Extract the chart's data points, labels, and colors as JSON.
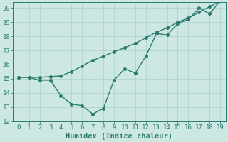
{
  "x": [
    0,
    1,
    2,
    3,
    4,
    5,
    6,
    7,
    8,
    9,
    10,
    11,
    12,
    13,
    14,
    15,
    16,
    17,
    18,
    19
  ],
  "line1_y": [
    15.1,
    15.1,
    15.1,
    15.15,
    15.2,
    15.5,
    15.9,
    16.3,
    16.6,
    16.9,
    17.2,
    17.5,
    17.9,
    18.3,
    18.6,
    19.0,
    19.3,
    19.7,
    20.1,
    20.5
  ],
  "line2_y": [
    15.1,
    15.1,
    14.9,
    14.9,
    13.8,
    13.2,
    13.1,
    12.5,
    12.9,
    14.9,
    15.7,
    15.4,
    16.6,
    18.2,
    18.1,
    18.9,
    19.2,
    20.0,
    19.6,
    20.5
  ],
  "line_color": "#2a7a6e",
  "bg_color": "#cde8e2",
  "grid_color": "#b0d4ce",
  "xlabel": "Humidex (Indice chaleur)",
  "ylim": [
    12,
    20
  ],
  "xlim": [
    -0.5,
    19.5
  ],
  "yticks": [
    12,
    13,
    14,
    15,
    16,
    17,
    18,
    19,
    20
  ],
  "xticks": [
    0,
    1,
    2,
    3,
    4,
    5,
    6,
    7,
    8,
    9,
    10,
    11,
    12,
    13,
    14,
    15,
    16,
    17,
    18,
    19
  ],
  "marker_size": 2.5,
  "line_width": 1.0,
  "font_size": 6.5,
  "xlabel_fontsize": 7.5
}
